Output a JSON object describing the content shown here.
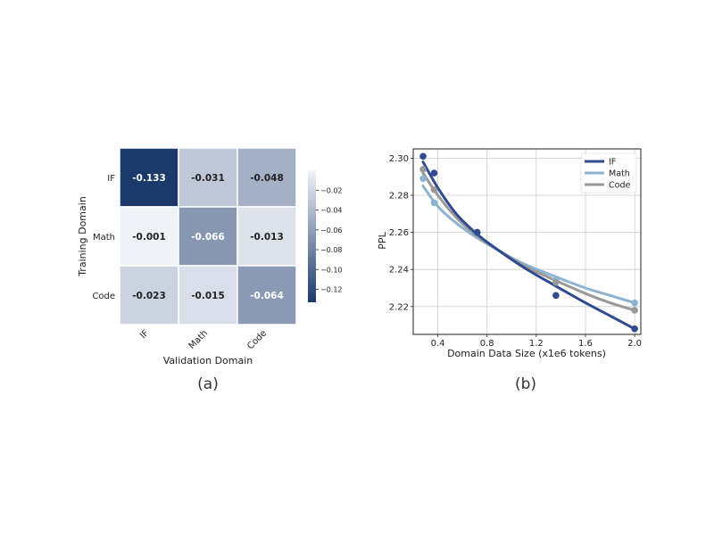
{
  "chart_data": [
    {
      "type": "heatmap",
      "panel_label": "(a)",
      "xlabel": "Validation Domain",
      "ylabel": "Training Domain",
      "x_categories": [
        "IF",
        "Math",
        "Code"
      ],
      "y_categories": [
        "IF",
        "Math",
        "Code"
      ],
      "values": [
        [
          -0.133,
          -0.031,
          -0.048
        ],
        [
          -0.001,
          -0.066,
          -0.013
        ],
        [
          -0.023,
          -0.015,
          -0.064
        ]
      ],
      "labels": [
        [
          "-0.133",
          "-0.031",
          "-0.048"
        ],
        [
          "-0.001",
          "-0.066",
          "-0.013"
        ],
        [
          "-0.023",
          "-0.015",
          "-0.064"
        ]
      ],
      "colorbar": {
        "range": [
          -0.133,
          0.0
        ],
        "ticks": [
          -0.02,
          -0.04,
          -0.06,
          -0.08,
          -0.1,
          -0.12
        ],
        "tick_labels": [
          "−0.02",
          "−0.04",
          "−0.06",
          "−0.08",
          "−0.10",
          "−0.12"
        ],
        "color_low": "#1b3a6b",
        "color_high": "#f1f3f8"
      }
    },
    {
      "type": "line",
      "panel_label": "(b)",
      "xlabel": "Domain Data Size (x1e6 tokens)",
      "ylabel": "PPL",
      "xlim": [
        0.2,
        2.05
      ],
      "ylim": [
        2.205,
        2.305
      ],
      "xticks": [
        0.4,
        0.8,
        1.2,
        1.6,
        2.0
      ],
      "xtick_labels": [
        "0.4",
        "0.8",
        "1.2",
        "1.6",
        "2.0"
      ],
      "yticks": [
        2.22,
        2.24,
        2.26,
        2.28,
        2.3
      ],
      "ytick_labels": [
        "2.22",
        "2.24",
        "2.26",
        "2.28",
        "2.30"
      ],
      "grid": true,
      "legend_position": "top-right",
      "series": [
        {
          "name": "IF",
          "color": "#2f4a8f",
          "points": [
            [
              0.28,
              2.301
            ],
            [
              0.37,
              2.292
            ],
            [
              0.72,
              2.26
            ],
            [
              1.36,
              2.226
            ],
            [
              2.0,
              2.208
            ]
          ],
          "curve": [
            [
              0.28,
              2.298
            ],
            [
              0.4,
              2.284
            ],
            [
              0.55,
              2.27
            ],
            [
              0.72,
              2.259
            ],
            [
              0.9,
              2.25
            ],
            [
              1.1,
              2.241
            ],
            [
              1.36,
              2.231
            ],
            [
              1.6,
              2.222
            ],
            [
              1.8,
              2.215
            ],
            [
              2.0,
              2.208
            ]
          ]
        },
        {
          "name": "Math",
          "color": "#8db3d3",
          "points": [
            [
              0.28,
              2.289
            ],
            [
              0.37,
              2.276
            ],
            [
              0.72,
              2.26
            ],
            [
              1.36,
              2.234
            ],
            [
              2.0,
              2.222
            ]
          ],
          "curve": [
            [
              0.28,
              2.285
            ],
            [
              0.4,
              2.274
            ],
            [
              0.55,
              2.265
            ],
            [
              0.72,
              2.257
            ],
            [
              0.9,
              2.25
            ],
            [
              1.1,
              2.243
            ],
            [
              1.36,
              2.236
            ],
            [
              1.6,
              2.23
            ],
            [
              1.8,
              2.226
            ],
            [
              2.0,
              2.222
            ]
          ]
        },
        {
          "name": "Code",
          "color": "#999999",
          "points": [
            [
              0.28,
              2.294
            ],
            [
              0.37,
              2.283
            ],
            [
              0.72,
              2.26
            ],
            [
              1.36,
              2.233
            ],
            [
              2.0,
              2.218
            ]
          ],
          "curve": [
            [
              0.28,
              2.292
            ],
            [
              0.4,
              2.28
            ],
            [
              0.55,
              2.268
            ],
            [
              0.72,
              2.258
            ],
            [
              0.9,
              2.25
            ],
            [
              1.1,
              2.242
            ],
            [
              1.36,
              2.234
            ],
            [
              1.6,
              2.227
            ],
            [
              1.8,
              2.222
            ],
            [
              2.0,
              2.218
            ]
          ]
        }
      ]
    }
  ]
}
